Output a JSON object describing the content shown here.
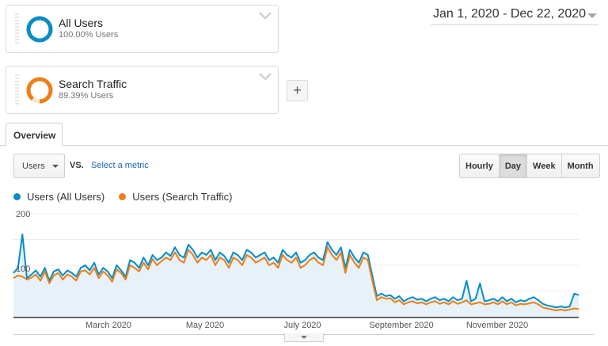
{
  "segments": [
    {
      "name": "All Users",
      "pct": "100.00% Users",
      "color": "#058dc7",
      "fraction": 1.0
    },
    {
      "name": "Search Traffic",
      "pct": "89.39% Users",
      "color": "#ed7e17",
      "fraction": 0.8939
    }
  ],
  "add_segment_label": "+",
  "date_range": "Jan 1, 2020 - Dec 22, 2020",
  "tabs": [
    {
      "label": "Overview"
    }
  ],
  "controls": {
    "metric": "Users",
    "vs": "VS.",
    "select_metric": "Select a metric",
    "granularity": [
      "Hourly",
      "Day",
      "Week",
      "Month"
    ],
    "active_granularity": "Day"
  },
  "chart_data": {
    "type": "line",
    "title": "",
    "xlabel": "",
    "ylabel": "Users",
    "ylim": [
      0,
      200
    ],
    "y_ticks": [
      100,
      200
    ],
    "grid": true,
    "legend_position": "top-left",
    "x_tick_labels": [
      "March 2020",
      "May 2020",
      "July 2020",
      "September 2020",
      "November 2020"
    ],
    "x_range": [
      "2020-01-01",
      "2020-12-22"
    ],
    "series": [
      {
        "name": "Users (All Users)",
        "color": "#058dc7",
        "fill": "#e6f1f8",
        "weekly_values": [
          85,
          95,
          160,
          75,
          82,
          90,
          78,
          95,
          70,
          88,
          92,
          80,
          90,
          85,
          78,
          95,
          100,
          90,
          105,
          82,
          95,
          88,
          75,
          100,
          90,
          78,
          110,
          105,
          95,
          115,
          100,
          120,
          110,
          115,
          125,
          118,
          135,
          120,
          115,
          140,
          130,
          115,
          125,
          120,
          130,
          110,
          125,
          118,
          105,
          125,
          120,
          110,
          130,
          125,
          115,
          120,
          125,
          110,
          115,
          105,
          130,
          120,
          115,
          125,
          105,
          110,
          120,
          125,
          115,
          110,
          145,
          130,
          120,
          135,
          95,
          130,
          115,
          105,
          125,
          120,
          80,
          40,
          45,
          40,
          42,
          35,
          40,
          30,
          35,
          38,
          33,
          35,
          30,
          35,
          38,
          32,
          35,
          30,
          38,
          32,
          35,
          70,
          30,
          35,
          65,
          30,
          32,
          35,
          30,
          38,
          30,
          35,
          28,
          32,
          30,
          35,
          38,
          32,
          25,
          22,
          20,
          18,
          20,
          18,
          20,
          45,
          42
        ]
      },
      {
        "name": "Users (Search Traffic)",
        "color": "#ed7e17",
        "weekly_values": [
          75,
          80,
          78,
          72,
          76,
          82,
          70,
          88,
          65,
          80,
          85,
          72,
          82,
          78,
          70,
          88,
          90,
          82,
          95,
          75,
          88,
          80,
          68,
          92,
          85,
          72,
          100,
          95,
          88,
          105,
          92,
          112,
          100,
          108,
          115,
          110,
          125,
          110,
          105,
          130,
          120,
          105,
          115,
          110,
          120,
          100,
          115,
          110,
          95,
          115,
          110,
          100,
          120,
          115,
          105,
          110,
          115,
          100,
          105,
          95,
          120,
          110,
          105,
          115,
          95,
          100,
          110,
          115,
          105,
          100,
          135,
          120,
          110,
          125,
          85,
          120,
          105,
          95,
          115,
          110,
          70,
          32,
          38,
          35,
          36,
          28,
          32,
          24,
          28,
          30,
          26,
          28,
          24,
          28,
          30,
          25,
          28,
          24,
          30,
          25,
          28,
          32,
          24,
          26,
          28,
          24,
          25,
          28,
          24,
          30,
          24,
          28,
          22,
          25,
          24,
          26,
          28,
          24,
          18,
          16,
          14,
          12,
          14,
          12,
          14,
          16,
          15
        ]
      }
    ]
  }
}
